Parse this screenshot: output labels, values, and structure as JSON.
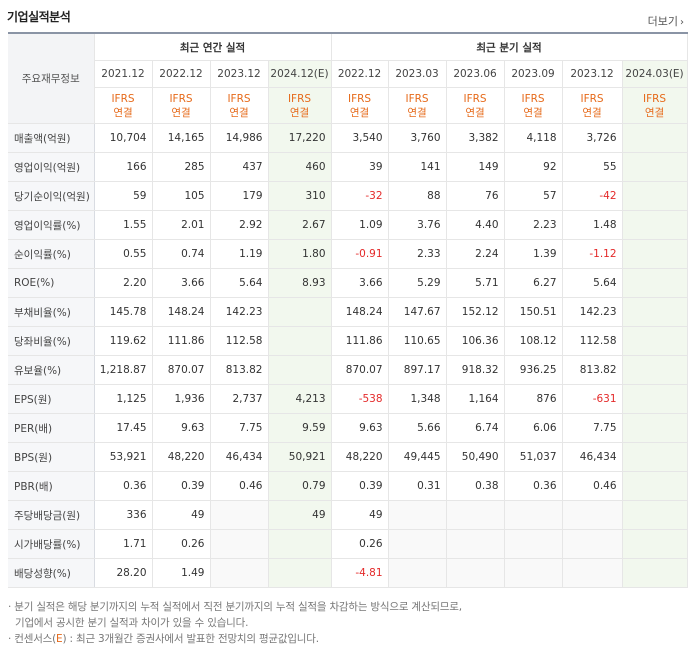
{
  "title": "기업실적분석",
  "more_label": "더보기",
  "header": {
    "row_label": "주요재무정보",
    "annual_group": "최근 연간 실적",
    "quarter_group": "최근 분기 실적",
    "annual_periods": [
      "2021.12",
      "2022.12",
      "2023.12",
      "2024.12(E)"
    ],
    "quarter_periods": [
      "2022.12",
      "2023.03",
      "2023.06",
      "2023.09",
      "2023.12",
      "2024.03(E)"
    ],
    "ifrs_top": "IFRS",
    "ifrs_bottom": "연결"
  },
  "rows": [
    {
      "label": "매출액(억원)",
      "annual": [
        "10,704",
        "14,165",
        "14,986",
        "17,220"
      ],
      "quarter": [
        "3,540",
        "3,760",
        "3,382",
        "4,118",
        "3,726",
        ""
      ]
    },
    {
      "label": "영업이익(억원)",
      "annual": [
        "166",
        "285",
        "437",
        "460"
      ],
      "quarter": [
        "39",
        "141",
        "149",
        "92",
        "55",
        ""
      ]
    },
    {
      "label": "당기순이익(억원)",
      "annual": [
        "59",
        "105",
        "179",
        "310"
      ],
      "quarter": [
        "-32",
        "88",
        "76",
        "57",
        "-42",
        ""
      ]
    },
    {
      "label": "영업이익률(%)",
      "annual": [
        "1.55",
        "2.01",
        "2.92",
        "2.67"
      ],
      "quarter": [
        "1.09",
        "3.76",
        "4.40",
        "2.23",
        "1.48",
        ""
      ]
    },
    {
      "label": "순이익률(%)",
      "annual": [
        "0.55",
        "0.74",
        "1.19",
        "1.80"
      ],
      "quarter": [
        "-0.91",
        "2.33",
        "2.24",
        "1.39",
        "-1.12",
        ""
      ]
    },
    {
      "label": "ROE(%)",
      "annual": [
        "2.20",
        "3.66",
        "5.64",
        "8.93"
      ],
      "quarter": [
        "3.66",
        "5.29",
        "5.71",
        "6.27",
        "5.64",
        ""
      ]
    },
    {
      "label": "부채비율(%)",
      "annual": [
        "145.78",
        "148.24",
        "142.23",
        ""
      ],
      "quarter": [
        "148.24",
        "147.67",
        "152.12",
        "150.51",
        "142.23",
        ""
      ]
    },
    {
      "label": "당좌비율(%)",
      "annual": [
        "119.62",
        "111.86",
        "112.58",
        ""
      ],
      "quarter": [
        "111.86",
        "110.65",
        "106.36",
        "108.12",
        "112.58",
        ""
      ]
    },
    {
      "label": "유보율(%)",
      "annual": [
        "1,218.87",
        "870.07",
        "813.82",
        ""
      ],
      "quarter": [
        "870.07",
        "897.17",
        "918.32",
        "936.25",
        "813.82",
        ""
      ]
    },
    {
      "label": "EPS(원)",
      "annual": [
        "1,125",
        "1,936",
        "2,737",
        "4,213"
      ],
      "quarter": [
        "-538",
        "1,348",
        "1,164",
        "876",
        "-631",
        ""
      ]
    },
    {
      "label": "PER(배)",
      "annual": [
        "17.45",
        "9.63",
        "7.75",
        "9.59"
      ],
      "quarter": [
        "9.63",
        "5.66",
        "6.74",
        "6.06",
        "7.75",
        ""
      ]
    },
    {
      "label": "BPS(원)",
      "annual": [
        "53,921",
        "48,220",
        "46,434",
        "50,921"
      ],
      "quarter": [
        "48,220",
        "49,445",
        "50,490",
        "51,037",
        "46,434",
        ""
      ]
    },
    {
      "label": "PBR(배)",
      "annual": [
        "0.36",
        "0.39",
        "0.46",
        "0.79"
      ],
      "quarter": [
        "0.39",
        "0.31",
        "0.38",
        "0.36",
        "0.46",
        ""
      ]
    },
    {
      "label": "주당배당금(원)",
      "annual": [
        "336",
        "49",
        "",
        "49"
      ],
      "quarter": [
        "49",
        "",
        "",
        "",
        "",
        ""
      ]
    },
    {
      "label": "시가배당률(%)",
      "annual": [
        "1.71",
        "0.26",
        "",
        ""
      ],
      "quarter": [
        "0.26",
        "",
        "",
        "",
        "",
        ""
      ]
    },
    {
      "label": "배당성향(%)",
      "annual": [
        "28.20",
        "1.49",
        "",
        ""
      ],
      "quarter": [
        "-4.81",
        "",
        "",
        "",
        "",
        ""
      ]
    }
  ],
  "group_starts": [
    0,
    3,
    6,
    9,
    13
  ],
  "notes": {
    "line1": "분기 실적은 해당 분기까지의 누적 실적에서 직전 분기까지의 누적 실적을 차감하는 방식으로 계산되므로,",
    "line2": "기업에서 공시한 분기 실적과 차이가 있을 수 있습니다.",
    "line3_prefix": "컨센서스(",
    "line3_e": "E",
    "line3_suffix": ") : 최근 3개월간 증권사에서 발표한 전망치의 평균값입니다."
  },
  "colors": {
    "negative": "#e42a2a",
    "ifrs": "#e66a1a",
    "estimate_bg": "#f2f8ee"
  }
}
